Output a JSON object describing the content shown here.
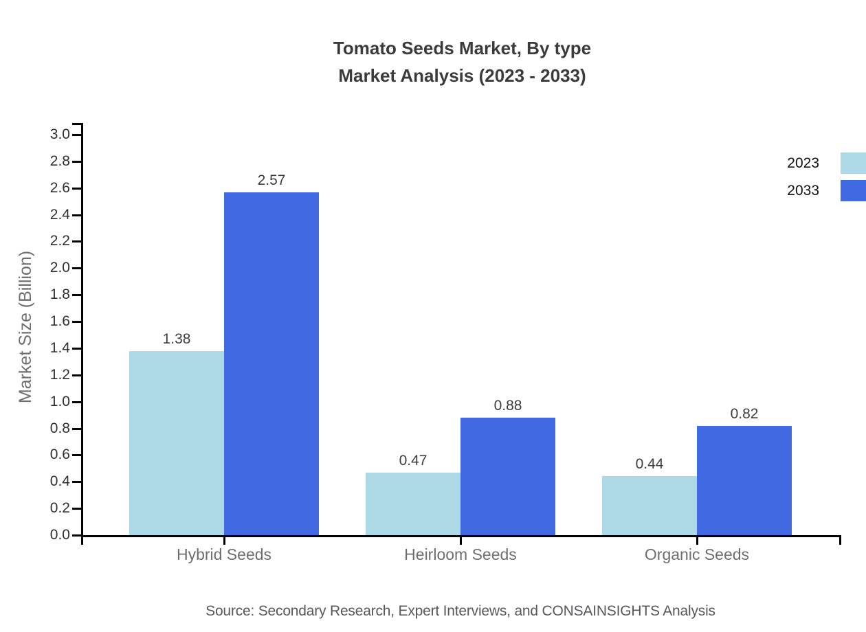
{
  "title": {
    "line1": "Tomato Seeds Market, By type",
    "line2": "Market Analysis (2023 - 2033)"
  },
  "source": "Source: Secondary Research, Expert Interviews, and CONSAINSIGHTS Analysis",
  "chart_data": {
    "type": "bar",
    "title": "Tomato Seeds Market, By type — Market Analysis (2023 - 2033)",
    "categories": [
      "Hybrid Seeds",
      "Heirloom Seeds",
      "Organic Seeds"
    ],
    "series": [
      {
        "name": "2023",
        "color": "#add8e6",
        "values": [
          1.38,
          0.47,
          0.44
        ]
      },
      {
        "name": "2033",
        "color": "#4169e1",
        "values": [
          2.57,
          0.88,
          0.82
        ]
      }
    ],
    "xlabel": "",
    "ylabel": "Market Size (Billion)",
    "ylim": [
      0,
      3.0
    ],
    "ytick_step": 0.2,
    "ytick_decimals": 1,
    "value_labels": true,
    "value_label_decimals": 2,
    "grid": false,
    "legend_position": "top-right"
  },
  "colors": {
    "series_2023": "#add8e6",
    "series_2033": "#4169e1",
    "axis": "#000000",
    "title_text": "#3b3b3b",
    "tick_label_text": "#2f2f2f",
    "category_label_text": "#6e6e6e",
    "value_label_text": "#3c3c3c",
    "y_axis_title_text": "#6e6e6e",
    "legend_text": "#111111",
    "source_text": "#58585a",
    "background": "#ffffff"
  }
}
